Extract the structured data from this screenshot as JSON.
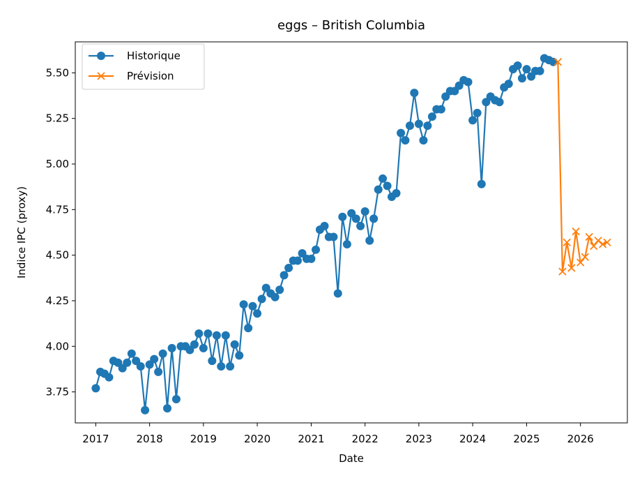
{
  "chart_data": {
    "type": "line",
    "title": "eggs – British Columbia",
    "xlabel": "Date",
    "ylabel": "Indice IPC (proxy)",
    "xlim": [
      "2016-08-15",
      "2026-11-15"
    ],
    "ylim": [
      3.58,
      5.67
    ],
    "x_ticks": [
      "2017",
      "2018",
      "2019",
      "2020",
      "2021",
      "2022",
      "2023",
      "2024",
      "2025",
      "2026"
    ],
    "y_ticks": [
      "3.75",
      "4.00",
      "4.25",
      "4.50",
      "4.75",
      "5.00",
      "5.25",
      "5.50"
    ],
    "legend_position": "top-left",
    "grid": false,
    "series": [
      {
        "name": "Historique",
        "color": "#1f77b4",
        "marker": "circle",
        "x": [
          "2017-01-01",
          "2017-02-01",
          "2017-03-01",
          "2017-04-01",
          "2017-05-01",
          "2017-06-01",
          "2017-07-01",
          "2017-08-01",
          "2017-09-01",
          "2017-10-01",
          "2017-11-01",
          "2017-12-01",
          "2018-01-01",
          "2018-02-01",
          "2018-03-01",
          "2018-04-01",
          "2018-05-01",
          "2018-06-01",
          "2018-07-01",
          "2018-08-01",
          "2018-09-01",
          "2018-10-01",
          "2018-11-01",
          "2018-12-01",
          "2019-01-01",
          "2019-02-01",
          "2019-03-01",
          "2019-04-01",
          "2019-05-01",
          "2019-06-01",
          "2019-07-01",
          "2019-08-01",
          "2019-09-01",
          "2019-10-01",
          "2019-11-01",
          "2019-12-01",
          "2020-01-01",
          "2020-02-01",
          "2020-03-01",
          "2020-04-01",
          "2020-05-01",
          "2020-06-01",
          "2020-07-01",
          "2020-08-01",
          "2020-09-01",
          "2020-10-01",
          "2020-11-01",
          "2020-12-01",
          "2021-01-01",
          "2021-02-01",
          "2021-03-01",
          "2021-04-01",
          "2021-05-01",
          "2021-06-01",
          "2021-07-01",
          "2021-08-01",
          "2021-09-01",
          "2021-10-01",
          "2021-11-01",
          "2021-12-01",
          "2022-01-01",
          "2022-02-01",
          "2022-03-01",
          "2022-04-01",
          "2022-05-01",
          "2022-06-01",
          "2022-07-01",
          "2022-08-01",
          "2022-09-01",
          "2022-10-01",
          "2022-11-01",
          "2022-12-01",
          "2023-01-01",
          "2023-02-01",
          "2023-03-01",
          "2023-04-01",
          "2023-05-01",
          "2023-06-01",
          "2023-07-01",
          "2023-08-01",
          "2023-09-01",
          "2023-10-01",
          "2023-11-01",
          "2023-12-01",
          "2024-01-01",
          "2024-02-01",
          "2024-03-01",
          "2024-04-01",
          "2024-05-01",
          "2024-06-01",
          "2024-07-01",
          "2024-08-01",
          "2024-09-01",
          "2024-10-01",
          "2024-11-01",
          "2024-12-01",
          "2025-01-01",
          "2025-02-01",
          "2025-03-01",
          "2025-04-01",
          "2025-05-01",
          "2025-06-01",
          "2025-07-01"
        ],
        "y": [
          3.77,
          3.86,
          3.85,
          3.83,
          3.92,
          3.91,
          3.88,
          3.91,
          3.96,
          3.92,
          3.89,
          3.65,
          3.9,
          3.93,
          3.86,
          3.96,
          3.66,
          3.99,
          3.71,
          4.0,
          4.0,
          3.98,
          4.01,
          4.07,
          3.99,
          4.07,
          3.92,
          4.06,
          3.89,
          4.06,
          3.89,
          4.01,
          3.95,
          4.23,
          4.1,
          4.22,
          4.18,
          4.26,
          4.32,
          4.29,
          4.27,
          4.31,
          4.39,
          4.43,
          4.47,
          4.47,
          4.51,
          4.48,
          4.48,
          4.53,
          4.64,
          4.66,
          4.6,
          4.6,
          4.29,
          4.71,
          4.56,
          4.73,
          4.7,
          4.66,
          4.74,
          4.58,
          4.7,
          4.86,
          4.92,
          4.88,
          4.82,
          4.84,
          5.17,
          5.13,
          5.21,
          5.39,
          5.22,
          5.13,
          5.21,
          5.26,
          5.3,
          5.3,
          5.37,
          5.4,
          5.4,
          5.43,
          5.46,
          5.45,
          5.24,
          5.28,
          4.89,
          5.34,
          5.37,
          5.35,
          5.34,
          5.42,
          5.44,
          5.52,
          5.54,
          5.47,
          5.52,
          5.48,
          5.51,
          5.51,
          5.58,
          5.57,
          5.56
        ]
      },
      {
        "name": "Prévision",
        "color": "#ff7f0e",
        "marker": "x",
        "x": [
          "2025-08-01",
          "2025-09-01",
          "2025-10-01",
          "2025-11-01",
          "2025-12-01",
          "2026-01-01",
          "2026-02-01",
          "2026-03-01",
          "2026-04-01",
          "2026-05-01",
          "2026-06-01",
          "2026-07-01"
        ],
        "y": [
          5.56,
          4.41,
          4.57,
          4.43,
          4.63,
          4.46,
          4.49,
          4.6,
          4.55,
          4.58,
          4.56,
          4.57
        ]
      }
    ]
  }
}
